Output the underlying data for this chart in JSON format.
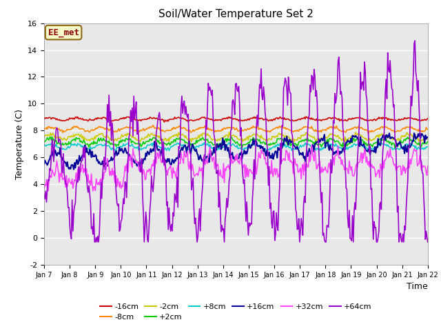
{
  "title": "Soil/Water Temperature Set 2",
  "xlabel": "Time",
  "ylabel": "Temperature (C)",
  "ylim": [
    -2,
    16
  ],
  "xlim": [
    0,
    15
  ],
  "plot_bg": "#e8e8e8",
  "annotation_text": "EE_met",
  "annotation_bg": "#ffffcc",
  "annotation_border": "#8b6914",
  "series": [
    {
      "label": "-16cm",
      "color": "#cc0000",
      "linewidth": 1.2
    },
    {
      "label": "-8cm",
      "color": "#ff8800",
      "linewidth": 1.2
    },
    {
      "label": "-2cm",
      "color": "#cccc00",
      "linewidth": 1.2
    },
    {
      "label": "+2cm",
      "color": "#00cc00",
      "linewidth": 1.2
    },
    {
      "label": "+8cm",
      "color": "#00cccc",
      "linewidth": 1.2
    },
    {
      "label": "+16cm",
      "color": "#000099",
      "linewidth": 1.5
    },
    {
      "label": "+32cm",
      "color": "#ff44ff",
      "linewidth": 1.2
    },
    {
      "label": "+64cm",
      "color": "#9900cc",
      "linewidth": 1.2
    }
  ],
  "xtick_labels": [
    "Jan 7",
    "Jan 8",
    "Jan 9",
    "Jan 10",
    "Jan 11",
    "Jan 12",
    "Jan 13",
    "Jan 14",
    "Jan 15",
    "Jan 16",
    "Jan 17",
    "Jan 18",
    "Jan 19",
    "Jan 20",
    "Jan 21",
    "Jan 22"
  ],
  "ytick_values": [
    -2,
    0,
    2,
    4,
    6,
    8,
    10,
    12,
    14,
    16
  ]
}
